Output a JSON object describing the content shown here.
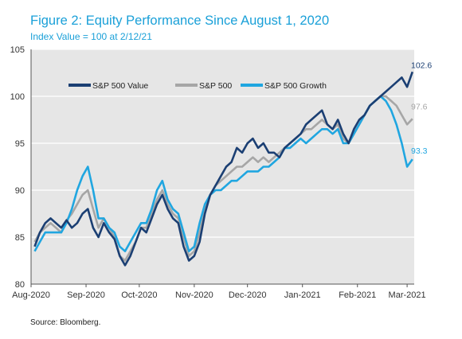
{
  "title": "Figure 2: Equity Performance Since August 1, 2020",
  "subtitle": "Index Value = 100 at 2/12/21",
  "source": "Source: Bloomberg.",
  "chart_data": {
    "type": "line",
    "ylim": [
      80,
      105
    ],
    "yticks": [
      80,
      85,
      90,
      95,
      100,
      105
    ],
    "x_range": [
      "2020-08-01",
      "2021-03-05"
    ],
    "xticks": [
      {
        "label": "Aug-2020",
        "date": "2020-08-01"
      },
      {
        "label": "Sep-2020",
        "date": "2020-09-01"
      },
      {
        "label": "Oct-2020",
        "date": "2020-10-01"
      },
      {
        "label": "Nov-2020",
        "date": "2020-11-01"
      },
      {
        "label": "Dec-2020",
        "date": "2020-12-01"
      },
      {
        "label": "Jan-2021",
        "date": "2021-01-01"
      },
      {
        "label": "Feb-2021",
        "date": "2021-02-01"
      },
      {
        "label": "Mar-2021",
        "date": "2021-03-01"
      }
    ],
    "grid": "horizontal",
    "background": "#e6e6e6",
    "legend_position": "top",
    "dates": [
      "2020-08-03",
      "2020-08-06",
      "2020-08-09",
      "2020-08-12",
      "2020-08-15",
      "2020-08-18",
      "2020-08-21",
      "2020-08-24",
      "2020-08-27",
      "2020-08-30",
      "2020-09-02",
      "2020-09-05",
      "2020-09-08",
      "2020-09-11",
      "2020-09-14",
      "2020-09-17",
      "2020-09-20",
      "2020-09-23",
      "2020-09-26",
      "2020-09-29",
      "2020-10-02",
      "2020-10-05",
      "2020-10-08",
      "2020-10-11",
      "2020-10-14",
      "2020-10-17",
      "2020-10-20",
      "2020-10-23",
      "2020-10-26",
      "2020-10-29",
      "2020-11-01",
      "2020-11-04",
      "2020-11-07",
      "2020-11-10",
      "2020-11-13",
      "2020-11-16",
      "2020-11-19",
      "2020-11-22",
      "2020-11-25",
      "2020-11-28",
      "2020-12-01",
      "2020-12-04",
      "2020-12-07",
      "2020-12-10",
      "2020-12-13",
      "2020-12-16",
      "2020-12-19",
      "2020-12-22",
      "2020-12-25",
      "2020-12-28",
      "2020-12-31",
      "2021-01-03",
      "2021-01-06",
      "2021-01-09",
      "2021-01-12",
      "2021-01-15",
      "2021-01-18",
      "2021-01-21",
      "2021-01-24",
      "2021-01-27",
      "2021-01-30",
      "2021-02-02",
      "2021-02-05",
      "2021-02-08",
      "2021-02-11",
      "2021-02-14",
      "2021-02-17",
      "2021-02-20",
      "2021-02-23",
      "2021-02-26",
      "2021-03-01",
      "2021-03-04"
    ],
    "series": [
      {
        "name": "S&P 500 Value",
        "color": "#1b3f73",
        "end_label": "102.6",
        "values": [
          84.0,
          85.5,
          86.5,
          87.0,
          86.5,
          86.0,
          86.8,
          86.0,
          86.5,
          87.5,
          88.0,
          86.0,
          85.0,
          86.5,
          85.5,
          84.8,
          83.0,
          82.0,
          83.0,
          84.5,
          86.0,
          85.5,
          87.0,
          88.5,
          89.5,
          88.0,
          87.0,
          86.5,
          84.0,
          82.5,
          83.0,
          84.5,
          87.5,
          89.5,
          90.5,
          91.5,
          92.5,
          93.0,
          94.5,
          94.0,
          95.0,
          95.5,
          94.5,
          95.0,
          94.0,
          94.0,
          93.5,
          94.5,
          95.0,
          95.5,
          96.0,
          97.0,
          97.5,
          98.0,
          98.5,
          97.0,
          96.5,
          97.5,
          96.0,
          95.0,
          96.5,
          97.5,
          98.0,
          99.0,
          99.5,
          100.0,
          100.5,
          101.0,
          101.5,
          102.0,
          101.0,
          102.6
        ]
      },
      {
        "name": "S&P 500",
        "color": "#a6a6a6",
        "end_label": "97.6",
        "values": [
          84.5,
          85.5,
          86.0,
          86.5,
          86.0,
          85.5,
          86.8,
          87.5,
          88.5,
          89.5,
          90.0,
          88.0,
          86.0,
          87.0,
          86.0,
          85.0,
          83.0,
          82.5,
          83.5,
          84.5,
          86.0,
          86.0,
          87.5,
          89.0,
          90.0,
          88.5,
          87.5,
          87.0,
          85.0,
          83.0,
          83.5,
          85.5,
          88.0,
          89.5,
          90.5,
          91.0,
          91.5,
          92.0,
          92.5,
          92.5,
          93.0,
          93.5,
          93.0,
          93.5,
          93.0,
          93.5,
          94.0,
          94.5,
          95.0,
          95.5,
          96.0,
          96.5,
          96.5,
          97.0,
          97.5,
          97.0,
          96.5,
          97.0,
          95.5,
          95.0,
          96.0,
          97.0,
          98.0,
          99.0,
          99.5,
          100.0,
          100.0,
          99.5,
          99.0,
          98.0,
          97.0,
          97.6
        ]
      },
      {
        "name": "S&P 500 Growth",
        "color": "#20a6e0",
        "end_label": "93.3",
        "values": [
          83.5,
          84.5,
          85.5,
          85.5,
          85.5,
          85.5,
          86.5,
          88.0,
          90.0,
          91.5,
          92.5,
          90.0,
          87.0,
          87.0,
          86.0,
          85.5,
          84.0,
          83.5,
          84.5,
          85.5,
          86.5,
          86.5,
          88.0,
          90.0,
          91.0,
          89.0,
          88.0,
          87.5,
          85.5,
          83.5,
          84.0,
          86.5,
          88.5,
          89.5,
          90.0,
          90.0,
          90.5,
          91.0,
          91.0,
          91.5,
          92.0,
          92.0,
          92.0,
          92.5,
          92.5,
          93.0,
          93.5,
          94.5,
          94.5,
          95.0,
          95.5,
          95.0,
          95.5,
          96.0,
          96.5,
          96.5,
          96.0,
          96.5,
          95.0,
          95.0,
          96.0,
          97.0,
          98.0,
          99.0,
          99.5,
          100.0,
          99.5,
          98.5,
          97.0,
          95.0,
          92.5,
          93.3
        ]
      }
    ]
  }
}
